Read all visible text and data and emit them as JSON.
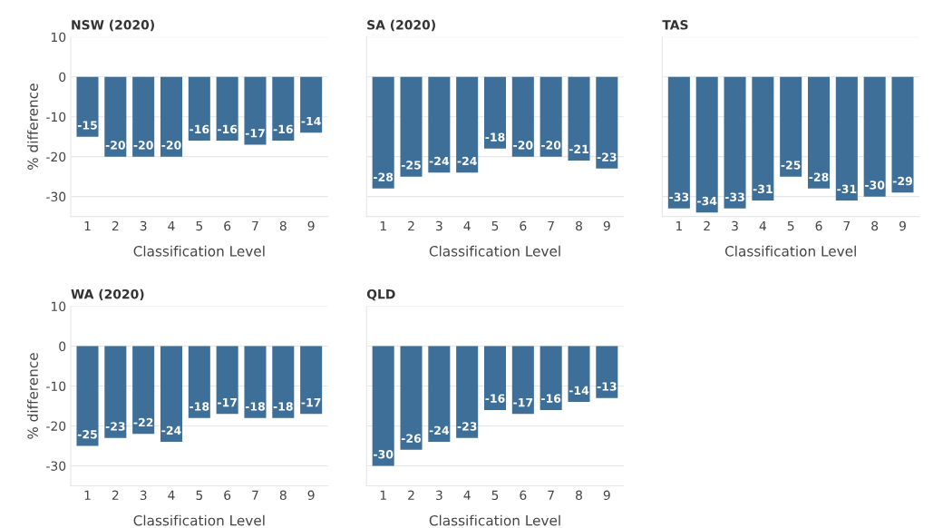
{
  "chart_data": [
    {
      "type": "bar",
      "title": "NSW (2020)",
      "xlabel": "Classification Level",
      "ylabel": "% difference",
      "categories": [
        "1",
        "2",
        "3",
        "4",
        "5",
        "6",
        "7",
        "8",
        "9"
      ],
      "values": [
        -15,
        -20,
        -20,
        -20,
        -16,
        -16,
        -17,
        -16,
        -14
      ],
      "color": "#3e6f98",
      "ylim": [
        -35,
        10
      ],
      "yticks": [
        -30,
        -20,
        -10,
        0,
        10
      ],
      "grid": "y",
      "data_labels": true
    },
    {
      "type": "bar",
      "title": "SA (2020)",
      "xlabel": "Classification Level",
      "categories": [
        "1",
        "2",
        "3",
        "4",
        "5",
        "6",
        "7",
        "8",
        "9"
      ],
      "values": [
        -28,
        -25,
        -24,
        -24,
        -18,
        -20,
        -20,
        -21,
        -23
      ],
      "color": "#3e6f98",
      "ylim": [
        -35,
        10
      ],
      "yticks": [
        -30,
        -20,
        -10,
        0,
        10
      ],
      "grid": "y",
      "data_labels": true,
      "tick_labels": "x"
    },
    {
      "type": "bar",
      "title": "TAS",
      "xlabel": "Classification Level",
      "categories": [
        "1",
        "2",
        "3",
        "4",
        "5",
        "6",
        "7",
        "8",
        "9"
      ],
      "values": [
        -33,
        -34,
        -33,
        -31,
        -25,
        -28,
        -31,
        -30,
        -29
      ],
      "color": "#3e6f98",
      "ylim": [
        -35,
        10
      ],
      "yticks": [
        -30,
        -20,
        -10,
        0,
        10
      ],
      "grid": "y",
      "data_labels": true,
      "tick_labels": "x"
    },
    {
      "type": "bar",
      "title": "WA (2020)",
      "xlabel": "Classification Level",
      "ylabel": "% difference",
      "categories": [
        "1",
        "2",
        "3",
        "4",
        "5",
        "6",
        "7",
        "8",
        "9"
      ],
      "values": [
        -25,
        -23,
        -22,
        -24,
        -18,
        -17,
        -18,
        -18,
        -17
      ],
      "color": "#3e6f98",
      "ylim": [
        -35,
        10
      ],
      "yticks": [
        -30,
        -20,
        -10,
        0,
        10
      ],
      "grid": "y",
      "data_labels": true
    },
    {
      "type": "bar",
      "title": "QLD",
      "xlabel": "Classification Level",
      "categories": [
        "1",
        "2",
        "3",
        "4",
        "5",
        "6",
        "7",
        "8",
        "9"
      ],
      "values": [
        -30,
        -26,
        -24,
        -23,
        -16,
        -17,
        -16,
        -14,
        -13
      ],
      "color": "#3e6f98",
      "ylim": [
        -35,
        10
      ],
      "yticks": [
        -30,
        -20,
        -10,
        0,
        10
      ],
      "grid": "y",
      "data_labels": true,
      "tick_labels": "x"
    }
  ]
}
